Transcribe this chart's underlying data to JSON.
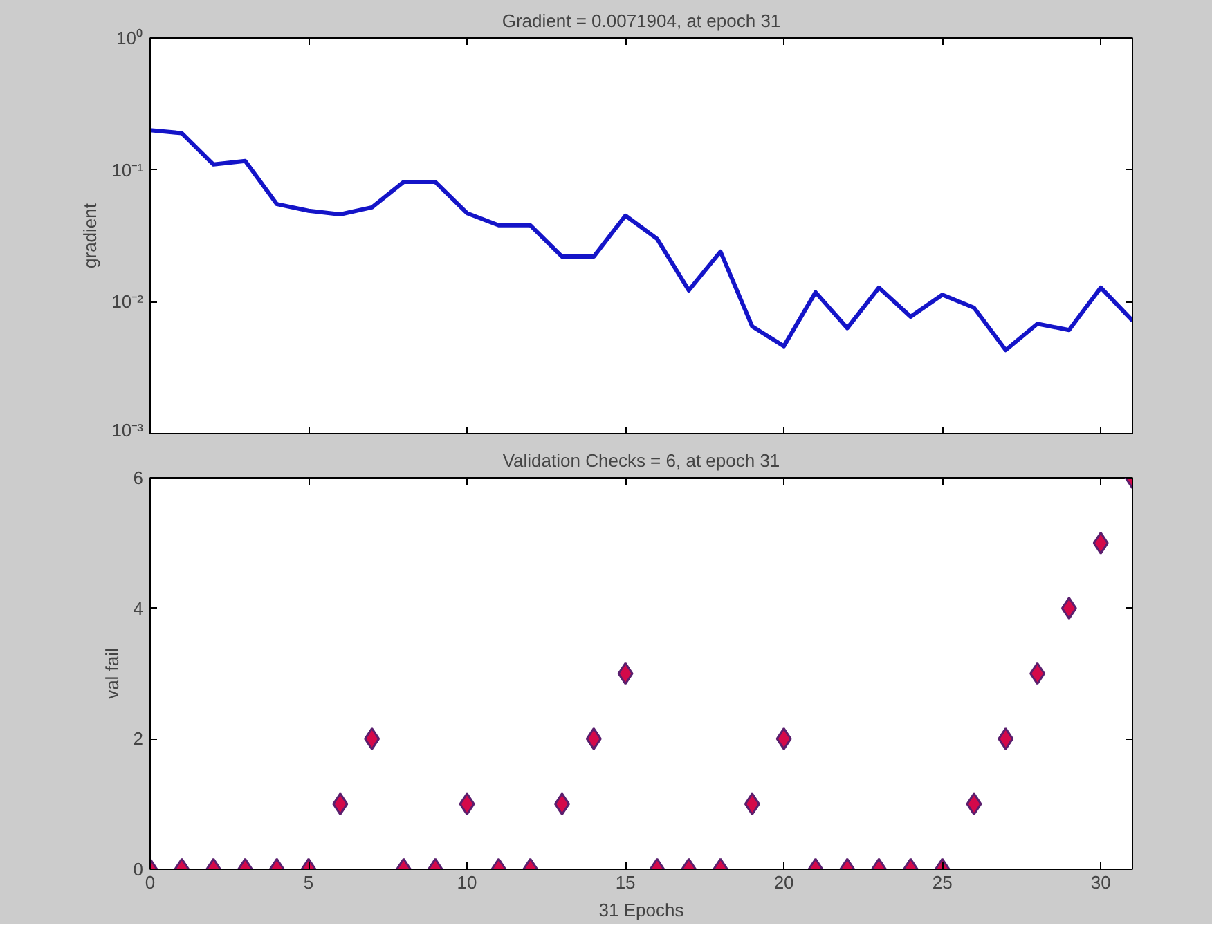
{
  "chart_data": [
    {
      "type": "line",
      "title": "Gradient = 0.0071904, at epoch 31",
      "ylabel": "gradient",
      "log": "y",
      "line_style": "solid",
      "marker": "none",
      "grid": false,
      "tick_labels": "y",
      "x": [
        0,
        1,
        2,
        3,
        4,
        5,
        6,
        7,
        8,
        9,
        10,
        11,
        12,
        13,
        14,
        15,
        16,
        17,
        18,
        19,
        20,
        21,
        22,
        23,
        24,
        25,
        26,
        27,
        28,
        29,
        30,
        31
      ],
      "series": [
        {
          "color": "#1414c8",
          "values": [
            0.2,
            0.19,
            0.11,
            0.117,
            0.055,
            0.049,
            0.046,
            0.052,
            0.081,
            0.081,
            0.047,
            0.038,
            0.038,
            0.022,
            0.022,
            0.045,
            0.03,
            0.0122,
            0.024,
            0.0065,
            0.0046,
            0.0118,
            0.0063,
            0.0128,
            0.0077,
            0.0113,
            0.009,
            0.0043,
            0.0068,
            0.0061,
            0.0128,
            0.0071904
          ]
        }
      ],
      "xlim": [
        0,
        31
      ],
      "xticks": [
        {
          "value": 0,
          "label": null
        },
        {
          "value": 5,
          "label": null
        },
        {
          "value": 10,
          "label": null
        },
        {
          "value": 15,
          "label": null
        },
        {
          "value": 20,
          "label": null
        },
        {
          "value": 25,
          "label": null
        },
        {
          "value": 30,
          "label": null
        }
      ],
      "ylim": [
        0.001,
        1
      ],
      "yticks": [
        {
          "value": 0.001,
          "label": "10⁻³"
        },
        {
          "value": 0.01,
          "label": "10⁻²"
        },
        {
          "value": 0.1,
          "label": "10⁻¹"
        },
        {
          "value": 1,
          "label": "10⁰"
        }
      ]
    },
    {
      "type": "scatter",
      "title": "Validation Checks = 6, at epoch 31",
      "xlabel": "31 Epochs",
      "ylabel": "val fail",
      "marker": "diamond",
      "grid": false,
      "x": [
        0,
        1,
        2,
        3,
        4,
        5,
        6,
        7,
        8,
        9,
        10,
        11,
        12,
        13,
        14,
        15,
        16,
        17,
        18,
        19,
        20,
        21,
        22,
        23,
        24,
        25,
        26,
        27,
        28,
        29,
        30,
        31
      ],
      "series": [
        {
          "color": "#d4094a",
          "values": [
            0,
            0,
            0,
            0,
            0,
            0,
            1,
            2,
            0,
            0,
            1,
            0,
            0,
            1,
            2,
            3,
            0,
            0,
            0,
            1,
            2,
            0,
            0,
            0,
            0,
            0,
            1,
            2,
            3,
            4,
            5,
            6
          ]
        }
      ],
      "xlim": [
        0,
        31
      ],
      "xticks": [
        0,
        5,
        10,
        15,
        20,
        25,
        30
      ],
      "ylim": [
        0,
        6
      ],
      "yticks": [
        0,
        2,
        4,
        6
      ]
    }
  ]
}
